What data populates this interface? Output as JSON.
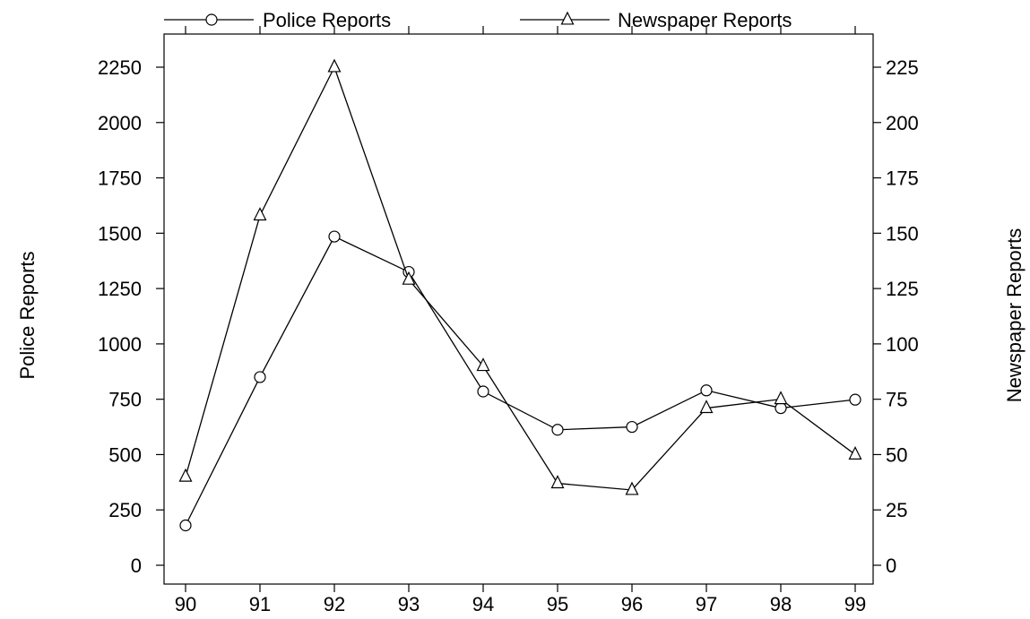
{
  "chart_data": {
    "type": "line",
    "title": "",
    "categories": [
      "90",
      "91",
      "92",
      "93",
      "94",
      "95",
      "96",
      "97",
      "98",
      "99"
    ],
    "series": [
      {
        "name": "Police Reports",
        "axis": "left",
        "marker": "circle",
        "values": [
          180,
          850,
          1485,
          1325,
          785,
          612,
          625,
          790,
          710,
          748
        ]
      },
      {
        "name": "Newspaper Reports",
        "axis": "right",
        "marker": "triangle",
        "values": [
          40,
          158,
          225,
          129,
          90,
          37,
          34,
          71,
          75,
          50
        ]
      }
    ],
    "ylabel_left": "Police Reports",
    "ylabel_right": "Newspaper Reports",
    "ylim_left": [
      0,
      2250
    ],
    "yticks_left": [
      "0",
      "250",
      "500",
      "750",
      "1000",
      "1250",
      "1500",
      "1750",
      "2000",
      "2250"
    ],
    "ylim_right": [
      0,
      225
    ],
    "yticks_right": [
      "0",
      "25",
      "50",
      "75",
      "100",
      "125",
      "150",
      "175",
      "200",
      "225"
    ],
    "grid": false,
    "legend_position": "top",
    "color": "#000000"
  }
}
